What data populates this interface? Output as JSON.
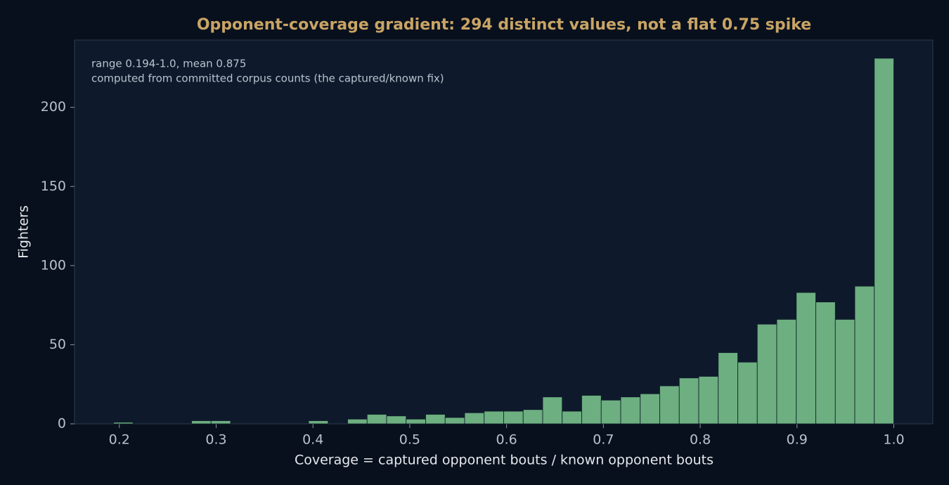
{
  "chart_data": {
    "type": "histogram",
    "title": "Opponent-coverage gradient: 294 distinct values, not a flat 0.75 spike",
    "x_label": "Coverage = captured opponent bouts / known opponent bouts",
    "y_label": "Fighters",
    "annotations": [
      "range 0.194-1.0, mean 0.875",
      "computed from committed corpus counts (the captured/known fix)"
    ],
    "bins": [
      0.194,
      0.21415,
      0.2343,
      0.25445,
      0.2746,
      0.29475,
      0.3149,
      0.33505,
      0.3552,
      0.37535,
      0.3955,
      0.41565,
      0.4358,
      0.45595,
      0.4761,
      0.49625,
      0.5164,
      0.53655,
      0.5567,
      0.57685,
      0.597,
      0.61715,
      0.6373,
      0.65745,
      0.6776,
      0.69775,
      0.7179,
      0.73805,
      0.7582,
      0.77835,
      0.7985,
      0.81865,
      0.8388,
      0.85895,
      0.8791,
      0.89925,
      0.9194,
      0.93955,
      0.9597,
      0.97985,
      1.0
    ],
    "counts": [
      1,
      0,
      0,
      0,
      2,
      2,
      0,
      0,
      0,
      0,
      2,
      0,
      3,
      6,
      5,
      3,
      6,
      4,
      7,
      8,
      8,
      9,
      17,
      8,
      18,
      15,
      17,
      19,
      24,
      29,
      30,
      45,
      39,
      63,
      66,
      83,
      77,
      66,
      87,
      231
    ],
    "color": "#6daf80",
    "xlim": [
      0.1537,
      1.0403
    ],
    "xticks": [
      0.2,
      0.3,
      0.4,
      0.5,
      0.6,
      0.7,
      0.8,
      0.9,
      {
        "value": 1,
        "label": "1.0"
      }
    ],
    "ylim": [
      0,
      242.5
    ],
    "yticks": [
      0,
      50,
      100,
      150,
      200
    ],
    "grid": false
  }
}
